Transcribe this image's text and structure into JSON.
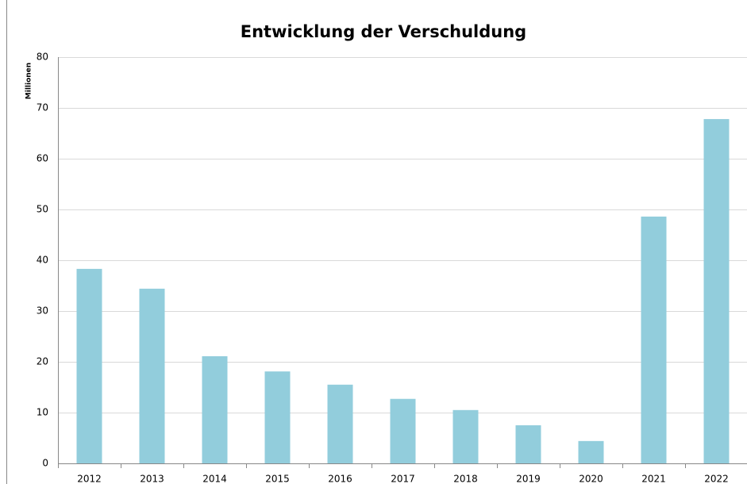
{
  "chart_data": {
    "type": "bar",
    "title": "Entwicklung der Verschuldung",
    "y_label": "Millionen",
    "categories": [
      "2012",
      "2013",
      "2014",
      "2015",
      "2016",
      "2017",
      "2018",
      "2019",
      "2020",
      "2021",
      "2022"
    ],
    "values": [
      38.3,
      34.4,
      21.1,
      18.1,
      15.5,
      12.7,
      10.5,
      7.5,
      4.4,
      48.6,
      67.8
    ],
    "color": "#92cddc",
    "ylim": [
      0,
      80
    ],
    "yticks": [
      0,
      10,
      20,
      30,
      40,
      50,
      60,
      70,
      80
    ],
    "grid": true
  }
}
